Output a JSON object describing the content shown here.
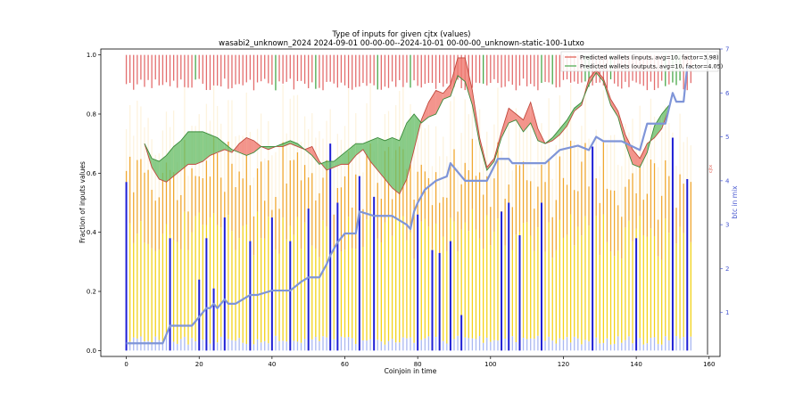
{
  "chart_data": {
    "type": "bar",
    "title": "Type of inputs for given cjtx (values)",
    "subtitle": "wasabi2_unknown_2024 2024-09-01 00-00-00--2024-10-01 00-00-00_unknown-static-100-1utxo",
    "xlabel": "Coinjoin in time",
    "ylabel": "Fraction of inputs values",
    "y2label": "btc in mix",
    "xlim": [
      -7,
      163
    ],
    "ylim": [
      -0.02,
      1.02
    ],
    "y2lim": [
      0.0,
      7.0
    ],
    "xticks": [
      "0",
      "20",
      "40",
      "60",
      "80",
      "100",
      "120",
      "140",
      "160"
    ],
    "yticks": [
      "0.0",
      "0.2",
      "0.4",
      "0.6",
      "0.8",
      "1.0"
    ],
    "y2ticks": [
      "1",
      "2",
      "3",
      "4",
      "5",
      "6",
      "7"
    ],
    "right_annotation": "cjtx",
    "legend_position": "top-right",
    "n_bars": 156,
    "stack_colors": [
      "#1f1fd6",
      "#aab8f2",
      "#f2d21a",
      "#f0a830",
      "#fdf3de",
      "#e46e6e",
      "#4aa84a"
    ],
    "blue_spikes": [
      {
        "x": 0,
        "v": 0.57
      },
      {
        "x": 12,
        "v": 0.38
      },
      {
        "x": 20,
        "v": 0.24
      },
      {
        "x": 22,
        "v": 0.38
      },
      {
        "x": 24,
        "v": 0.21
      },
      {
        "x": 27,
        "v": 0.45
      },
      {
        "x": 34,
        "v": 0.37
      },
      {
        "x": 40,
        "v": 0.45
      },
      {
        "x": 45,
        "v": 0.37
      },
      {
        "x": 50,
        "v": 0.48
      },
      {
        "x": 56,
        "v": 0.7
      },
      {
        "x": 58,
        "v": 0.5
      },
      {
        "x": 64,
        "v": 0.59
      },
      {
        "x": 68,
        "v": 0.52
      },
      {
        "x": 80,
        "v": 0.46
      },
      {
        "x": 84,
        "v": 0.34
      },
      {
        "x": 86,
        "v": 0.33
      },
      {
        "x": 89,
        "v": 0.37
      },
      {
        "x": 92,
        "v": 0.12
      },
      {
        "x": 103,
        "v": 0.47
      },
      {
        "x": 105,
        "v": 0.5
      },
      {
        "x": 108,
        "v": 0.39
      },
      {
        "x": 114,
        "v": 0.5
      },
      {
        "x": 128,
        "v": 0.69
      },
      {
        "x": 140,
        "v": 0.38
      },
      {
        "x": 150,
        "v": 0.72
      },
      {
        "x": 154,
        "v": 0.58
      }
    ],
    "series": [
      {
        "name": "Predicted wallets (inputs, avg=10, factor=3.98)",
        "color": "#e05a4e",
        "x": [
          5,
          7,
          9,
          11,
          13,
          15,
          17,
          19,
          21,
          23,
          25,
          27,
          29,
          31,
          33,
          35,
          37,
          39,
          41,
          43,
          45,
          47,
          49,
          51,
          53,
          55,
          57,
          59,
          61,
          63,
          65,
          67,
          69,
          71,
          73,
          75,
          77,
          79,
          81,
          83,
          85,
          87,
          89,
          91,
          93,
          95,
          97,
          99,
          101,
          103,
          105,
          107,
          109,
          111,
          113,
          115,
          117,
          119,
          121,
          123,
          125,
          127,
          129,
          131,
          133,
          135,
          137,
          139,
          141,
          143,
          145,
          147,
          149
        ],
        "values": [
          0.7,
          0.62,
          0.58,
          0.57,
          0.59,
          0.61,
          0.63,
          0.63,
          0.64,
          0.66,
          0.67,
          0.68,
          0.67,
          0.7,
          0.72,
          0.71,
          0.69,
          0.68,
          0.69,
          0.69,
          0.7,
          0.69,
          0.68,
          0.69,
          0.64,
          0.61,
          0.62,
          0.63,
          0.63,
          0.66,
          0.68,
          0.64,
          0.61,
          0.58,
          0.55,
          0.53,
          0.58,
          0.68,
          0.78,
          0.84,
          0.88,
          0.87,
          0.9,
          0.99,
          0.99,
          0.88,
          0.72,
          0.62,
          0.65,
          0.74,
          0.82,
          0.8,
          0.78,
          0.84,
          0.75,
          0.7,
          0.71,
          0.73,
          0.76,
          0.81,
          0.83,
          0.92,
          0.95,
          0.92,
          0.85,
          0.81,
          0.73,
          0.68,
          0.65,
          0.7,
          0.72,
          0.75,
          0.82
        ]
      },
      {
        "name": "Predicted wallets (outputs, avg=10, factor=4.05)",
        "color": "#4aa84a",
        "x": [
          5,
          7,
          9,
          11,
          13,
          15,
          17,
          19,
          21,
          23,
          25,
          27,
          29,
          31,
          33,
          35,
          37,
          39,
          41,
          43,
          45,
          47,
          49,
          51,
          53,
          55,
          57,
          59,
          61,
          63,
          65,
          67,
          69,
          71,
          73,
          75,
          77,
          79,
          81,
          83,
          85,
          87,
          89,
          91,
          93,
          95,
          97,
          99,
          101,
          103,
          105,
          107,
          109,
          111,
          113,
          115,
          117,
          119,
          121,
          123,
          125,
          127,
          129,
          131,
          133,
          135,
          137,
          139,
          141,
          143,
          145,
          147,
          149
        ],
        "values": [
          0.7,
          0.65,
          0.64,
          0.66,
          0.69,
          0.71,
          0.74,
          0.74,
          0.74,
          0.73,
          0.72,
          0.7,
          0.68,
          0.67,
          0.66,
          0.67,
          0.69,
          0.69,
          0.69,
          0.7,
          0.71,
          0.7,
          0.68,
          0.66,
          0.63,
          0.64,
          0.64,
          0.66,
          0.68,
          0.7,
          0.7,
          0.71,
          0.72,
          0.71,
          0.72,
          0.71,
          0.77,
          0.8,
          0.77,
          0.79,
          0.8,
          0.85,
          0.86,
          0.93,
          0.91,
          0.83,
          0.7,
          0.61,
          0.64,
          0.72,
          0.77,
          0.78,
          0.74,
          0.77,
          0.71,
          0.7,
          0.72,
          0.75,
          0.78,
          0.82,
          0.84,
          0.9,
          0.94,
          0.91,
          0.83,
          0.79,
          0.7,
          0.63,
          0.62,
          0.67,
          0.76,
          0.8,
          0.83
        ]
      },
      {
        "name": "",
        "color": "#7f95d8",
        "axis": "y2",
        "x": [
          0,
          5,
          10,
          12,
          14,
          18,
          19,
          20,
          21,
          22,
          23,
          24,
          25,
          26,
          27,
          28,
          30,
          34,
          36,
          40,
          44,
          45,
          48,
          50,
          53,
          55,
          56,
          58,
          60,
          63,
          64,
          68,
          73,
          77,
          78,
          79,
          80,
          82,
          85,
          88,
          89,
          91,
          93,
          95,
          99,
          102,
          105,
          106,
          108,
          115,
          119,
          124,
          127,
          129,
          131,
          134,
          136,
          141,
          143,
          148,
          150,
          151,
          153,
          154,
          155
        ],
        "values": [
          0.3,
          0.3,
          0.3,
          0.7,
          0.7,
          0.7,
          0.8,
          0.9,
          1.0,
          1.1,
          1.1,
          1.2,
          1.1,
          1.2,
          1.3,
          1.2,
          1.2,
          1.4,
          1.4,
          1.5,
          1.5,
          1.5,
          1.7,
          1.8,
          1.8,
          2.1,
          2.3,
          2.6,
          2.8,
          2.8,
          3.3,
          3.2,
          3.2,
          3.0,
          2.9,
          3.3,
          3.5,
          3.8,
          4.0,
          4.1,
          4.4,
          4.2,
          4.0,
          4.0,
          4.0,
          4.5,
          4.5,
          4.4,
          4.4,
          4.4,
          4.7,
          4.8,
          4.7,
          5.0,
          4.9,
          4.9,
          4.9,
          4.7,
          5.3,
          5.3,
          6.0,
          5.8,
          5.8,
          6.6,
          6.6
        ]
      }
    ]
  }
}
